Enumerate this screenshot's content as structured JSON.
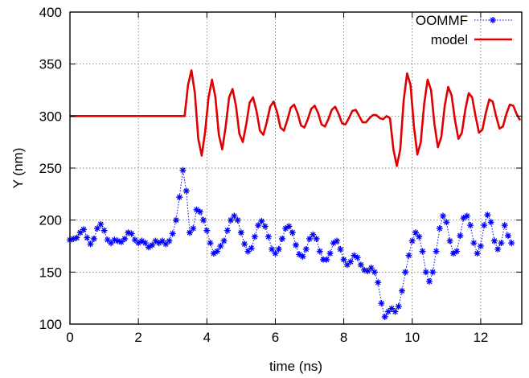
{
  "chart_data": {
    "type": "line",
    "xlabel": "time (ns)",
    "ylabel": "Y (nm)",
    "xlim": [
      0,
      13.2
    ],
    "ylim": [
      100,
      400
    ],
    "x_ticks": [
      0,
      2,
      4,
      6,
      8,
      10,
      12
    ],
    "y_ticks": [
      100,
      150,
      200,
      250,
      300,
      350,
      400
    ],
    "grid": true,
    "legend_position": "top-right",
    "series": [
      {
        "name": "OOMMF",
        "style": "dotted line with star markers",
        "color": "#0000ff",
        "points": [
          [
            0.0,
            181
          ],
          [
            0.1,
            182
          ],
          [
            0.2,
            183
          ],
          [
            0.3,
            188
          ],
          [
            0.4,
            191
          ],
          [
            0.5,
            183
          ],
          [
            0.6,
            177
          ],
          [
            0.7,
            182
          ],
          [
            0.8,
            192
          ],
          [
            0.9,
            196
          ],
          [
            1.0,
            190
          ],
          [
            1.1,
            181
          ],
          [
            1.2,
            178
          ],
          [
            1.3,
            181
          ],
          [
            1.4,
            180
          ],
          [
            1.5,
            179
          ],
          [
            1.6,
            182
          ],
          [
            1.7,
            188
          ],
          [
            1.8,
            187
          ],
          [
            1.9,
            181
          ],
          [
            2.0,
            178
          ],
          [
            2.1,
            180
          ],
          [
            2.2,
            178
          ],
          [
            2.3,
            174
          ],
          [
            2.4,
            176
          ],
          [
            2.5,
            180
          ],
          [
            2.6,
            178
          ],
          [
            2.7,
            180
          ],
          [
            2.8,
            177
          ],
          [
            2.9,
            180
          ],
          [
            3.0,
            187
          ],
          [
            3.1,
            200
          ],
          [
            3.2,
            222
          ],
          [
            3.3,
            248
          ],
          [
            3.4,
            228
          ],
          [
            3.5,
            188
          ],
          [
            3.6,
            192
          ],
          [
            3.7,
            210
          ],
          [
            3.8,
            208
          ],
          [
            3.9,
            200
          ],
          [
            4.0,
            190
          ],
          [
            4.1,
            178
          ],
          [
            4.2,
            168
          ],
          [
            4.3,
            170
          ],
          [
            4.4,
            175
          ],
          [
            4.5,
            180
          ],
          [
            4.6,
            190
          ],
          [
            4.7,
            200
          ],
          [
            4.8,
            204
          ],
          [
            4.9,
            200
          ],
          [
            5.0,
            188
          ],
          [
            5.1,
            177
          ],
          [
            5.2,
            170
          ],
          [
            5.3,
            173
          ],
          [
            5.4,
            184
          ],
          [
            5.5,
            195
          ],
          [
            5.6,
            199
          ],
          [
            5.7,
            194
          ],
          [
            5.8,
            184
          ],
          [
            5.9,
            172
          ],
          [
            6.0,
            168
          ],
          [
            6.1,
            172
          ],
          [
            6.2,
            182
          ],
          [
            6.3,
            192
          ],
          [
            6.4,
            194
          ],
          [
            6.5,
            188
          ],
          [
            6.6,
            176
          ],
          [
            6.7,
            167
          ],
          [
            6.8,
            165
          ],
          [
            6.9,
            172
          ],
          [
            7.0,
            182
          ],
          [
            7.1,
            186
          ],
          [
            7.2,
            182
          ],
          [
            7.3,
            170
          ],
          [
            7.4,
            162
          ],
          [
            7.5,
            162
          ],
          [
            7.6,
            168
          ],
          [
            7.7,
            178
          ],
          [
            7.8,
            180
          ],
          [
            7.9,
            172
          ],
          [
            8.0,
            162
          ],
          [
            8.1,
            157
          ],
          [
            8.2,
            160
          ],
          [
            8.3,
            166
          ],
          [
            8.4,
            164
          ],
          [
            8.5,
            157
          ],
          [
            8.6,
            152
          ],
          [
            8.7,
            151
          ],
          [
            8.8,
            154
          ],
          [
            8.9,
            150
          ],
          [
            9.0,
            140
          ],
          [
            9.1,
            120
          ],
          [
            9.2,
            107
          ],
          [
            9.3,
            112
          ],
          [
            9.4,
            115
          ],
          [
            9.5,
            112
          ],
          [
            9.6,
            117
          ],
          [
            9.7,
            132
          ],
          [
            9.8,
            150
          ],
          [
            9.9,
            166
          ],
          [
            10.0,
            180
          ],
          [
            10.1,
            188
          ],
          [
            10.2,
            184
          ],
          [
            10.3,
            170
          ],
          [
            10.4,
            150
          ],
          [
            10.5,
            141
          ],
          [
            10.6,
            150
          ],
          [
            10.7,
            170
          ],
          [
            10.8,
            192
          ],
          [
            10.9,
            204
          ],
          [
            11.0,
            198
          ],
          [
            11.1,
            180
          ],
          [
            11.2,
            168
          ],
          [
            11.3,
            170
          ],
          [
            11.4,
            185
          ],
          [
            11.5,
            202
          ],
          [
            11.6,
            204
          ],
          [
            11.7,
            195
          ],
          [
            11.8,
            178
          ],
          [
            11.9,
            168
          ],
          [
            12.0,
            175
          ],
          [
            12.1,
            195
          ],
          [
            12.2,
            205
          ],
          [
            12.3,
            198
          ],
          [
            12.4,
            180
          ],
          [
            12.5,
            172
          ],
          [
            12.6,
            178
          ],
          [
            12.7,
            195
          ],
          [
            12.8,
            185
          ],
          [
            12.9,
            178
          ]
        ]
      },
      {
        "name": "model",
        "style": "solid line",
        "color": "#e00000",
        "points": [
          [
            0.0,
            300
          ],
          [
            3.35,
            300
          ],
          [
            3.45,
            330
          ],
          [
            3.55,
            344
          ],
          [
            3.65,
            322
          ],
          [
            3.75,
            278
          ],
          [
            3.85,
            262
          ],
          [
            3.95,
            285
          ],
          [
            4.05,
            318
          ],
          [
            4.15,
            335
          ],
          [
            4.25,
            318
          ],
          [
            4.35,
            282
          ],
          [
            4.45,
            268
          ],
          [
            4.55,
            290
          ],
          [
            4.65,
            318
          ],
          [
            4.75,
            326
          ],
          [
            4.85,
            310
          ],
          [
            4.95,
            283
          ],
          [
            5.05,
            275
          ],
          [
            5.15,
            292
          ],
          [
            5.25,
            313
          ],
          [
            5.35,
            318
          ],
          [
            5.45,
            305
          ],
          [
            5.55,
            286
          ],
          [
            5.65,
            282
          ],
          [
            5.75,
            294
          ],
          [
            5.85,
            309
          ],
          [
            5.95,
            314
          ],
          [
            6.05,
            304
          ],
          [
            6.15,
            289
          ],
          [
            6.25,
            286
          ],
          [
            6.35,
            296
          ],
          [
            6.45,
            308
          ],
          [
            6.55,
            311
          ],
          [
            6.65,
            303
          ],
          [
            6.75,
            291
          ],
          [
            6.85,
            289
          ],
          [
            6.95,
            297
          ],
          [
            7.05,
            307
          ],
          [
            7.15,
            310
          ],
          [
            7.25,
            303
          ],
          [
            7.35,
            292
          ],
          [
            7.45,
            290
          ],
          [
            7.55,
            297
          ],
          [
            7.65,
            306
          ],
          [
            7.75,
            309
          ],
          [
            7.85,
            302
          ],
          [
            7.95,
            293
          ],
          [
            8.05,
            292
          ],
          [
            8.15,
            298
          ],
          [
            8.25,
            305
          ],
          [
            8.35,
            306
          ],
          [
            8.45,
            300
          ],
          [
            8.55,
            294
          ],
          [
            8.65,
            294
          ],
          [
            8.75,
            298
          ],
          [
            8.85,
            301
          ],
          [
            8.95,
            301
          ],
          [
            9.05,
            298
          ],
          [
            9.15,
            297
          ],
          [
            9.25,
            300
          ],
          [
            9.35,
            298
          ],
          [
            9.45,
            268
          ],
          [
            9.55,
            252
          ],
          [
            9.65,
            268
          ],
          [
            9.75,
            315
          ],
          [
            9.85,
            341
          ],
          [
            9.95,
            330
          ],
          [
            10.05,
            290
          ],
          [
            10.15,
            263
          ],
          [
            10.25,
            275
          ],
          [
            10.35,
            312
          ],
          [
            10.45,
            335
          ],
          [
            10.55,
            325
          ],
          [
            10.65,
            292
          ],
          [
            10.75,
            270
          ],
          [
            10.85,
            280
          ],
          [
            10.95,
            310
          ],
          [
            11.05,
            328
          ],
          [
            11.15,
            320
          ],
          [
            11.25,
            296
          ],
          [
            11.35,
            278
          ],
          [
            11.45,
            284
          ],
          [
            11.55,
            306
          ],
          [
            11.65,
            322
          ],
          [
            11.75,
            318
          ],
          [
            11.85,
            300
          ],
          [
            11.95,
            284
          ],
          [
            12.05,
            287
          ],
          [
            12.15,
            303
          ],
          [
            12.25,
            316
          ],
          [
            12.35,
            314
          ],
          [
            12.45,
            300
          ],
          [
            12.55,
            288
          ],
          [
            12.65,
            290
          ],
          [
            12.75,
            302
          ],
          [
            12.85,
            311
          ],
          [
            12.95,
            310
          ],
          [
            13.05,
            302
          ],
          [
            13.15,
            296
          ]
        ]
      }
    ]
  }
}
